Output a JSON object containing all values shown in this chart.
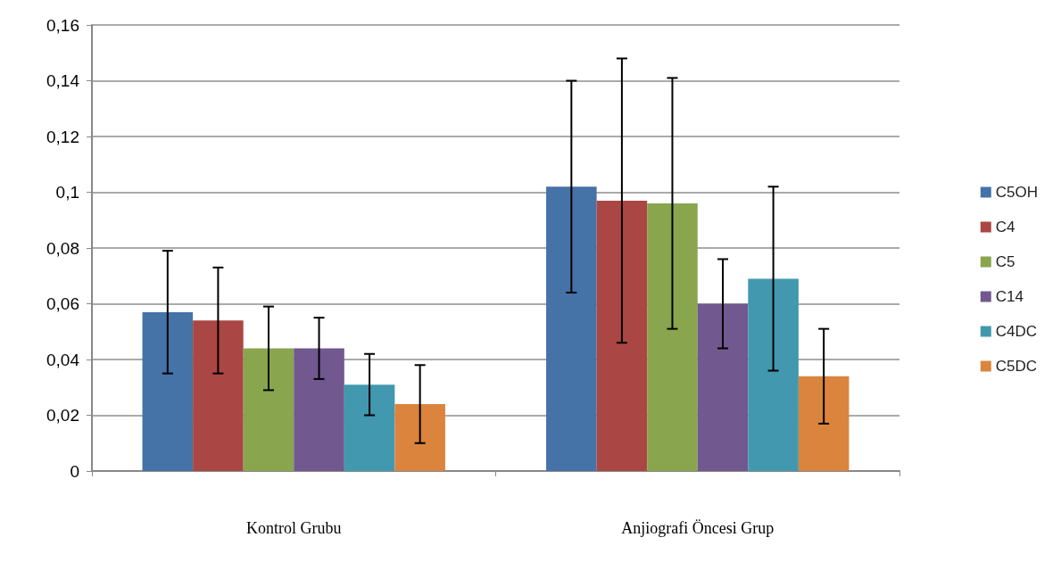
{
  "chart_data": {
    "type": "bar",
    "categories": [
      "Kontrol Grubu",
      "Anjiografi Öncesi Grup"
    ],
    "series": [
      {
        "name": "C5OH",
        "color": "#4572a7",
        "values": [
          0.057,
          0.102
        ],
        "errors": [
          [
            0.035,
            0.079
          ],
          [
            0.064,
            0.14
          ]
        ]
      },
      {
        "name": "C4",
        "color": "#aa4643",
        "values": [
          0.054,
          0.097
        ],
        "errors": [
          [
            0.035,
            0.073
          ],
          [
            0.046,
            0.148
          ]
        ]
      },
      {
        "name": "C5",
        "color": "#89a54e",
        "values": [
          0.044,
          0.096
        ],
        "errors": [
          [
            0.029,
            0.059
          ],
          [
            0.051,
            0.141
          ]
        ]
      },
      {
        "name": "C14",
        "color": "#71588f",
        "values": [
          0.044,
          0.06
        ],
        "errors": [
          [
            0.033,
            0.055
          ],
          [
            0.044,
            0.076
          ]
        ]
      },
      {
        "name": "C4DC",
        "color": "#4198af",
        "values": [
          0.031,
          0.069
        ],
        "errors": [
          [
            0.02,
            0.042
          ],
          [
            0.036,
            0.102
          ]
        ]
      },
      {
        "name": "C5DC",
        "color": "#db843d",
        "values": [
          0.024,
          0.034
        ],
        "errors": [
          [
            0.01,
            0.038
          ],
          [
            0.017,
            0.051
          ]
        ]
      }
    ],
    "ylim": [
      0,
      0.16
    ],
    "yticks": [
      0,
      {
        "value": 0.02,
        "label": "0,02"
      },
      {
        "value": 0.04,
        "label": "0,04"
      },
      {
        "value": 0.06,
        "label": "0,06"
      },
      {
        "value": 0.08,
        "label": "0,08"
      },
      {
        "value": 0.1,
        "label": "0,1"
      },
      {
        "value": 0.12,
        "label": "0,12"
      },
      {
        "value": 0.14,
        "label": "0,14"
      },
      {
        "value": 0.16,
        "label": "0,16"
      }
    ],
    "grid": "y",
    "legend": "right"
  }
}
